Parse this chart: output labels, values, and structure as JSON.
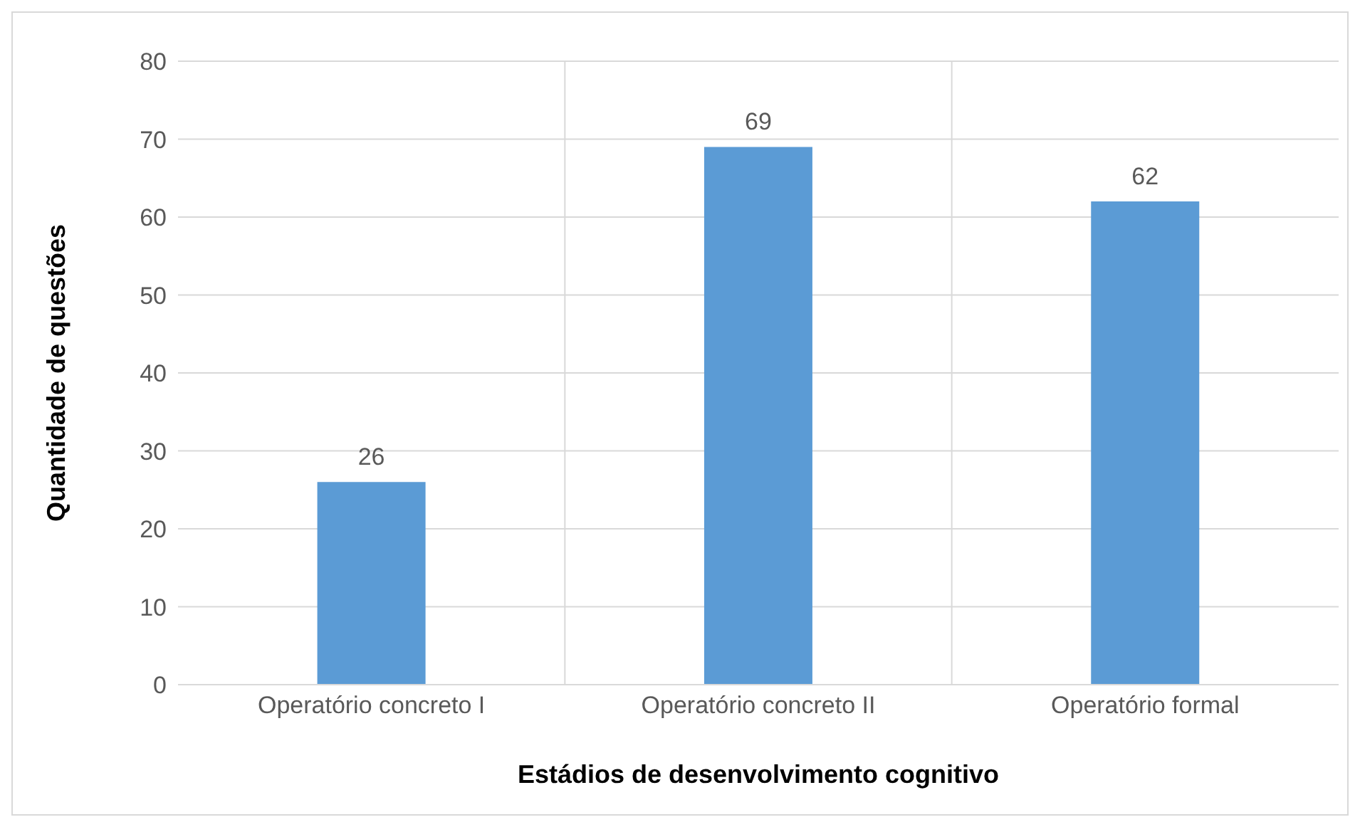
{
  "chart_data": {
    "type": "bar",
    "xlabel": "Estádios de desenvolvimento cognitivo",
    "ylabel": "Quantidade de questões",
    "categories": [
      "Operatório concreto I",
      "Operatório concreto II",
      "Operatório formal"
    ],
    "values": [
      26,
      69,
      62
    ],
    "color": "#5b9bd5",
    "ylim": [
      0,
      80
    ],
    "yticks": [
      0,
      10,
      20,
      30,
      40,
      50,
      60,
      70,
      80
    ],
    "grid": true,
    "data_labels": true
  }
}
